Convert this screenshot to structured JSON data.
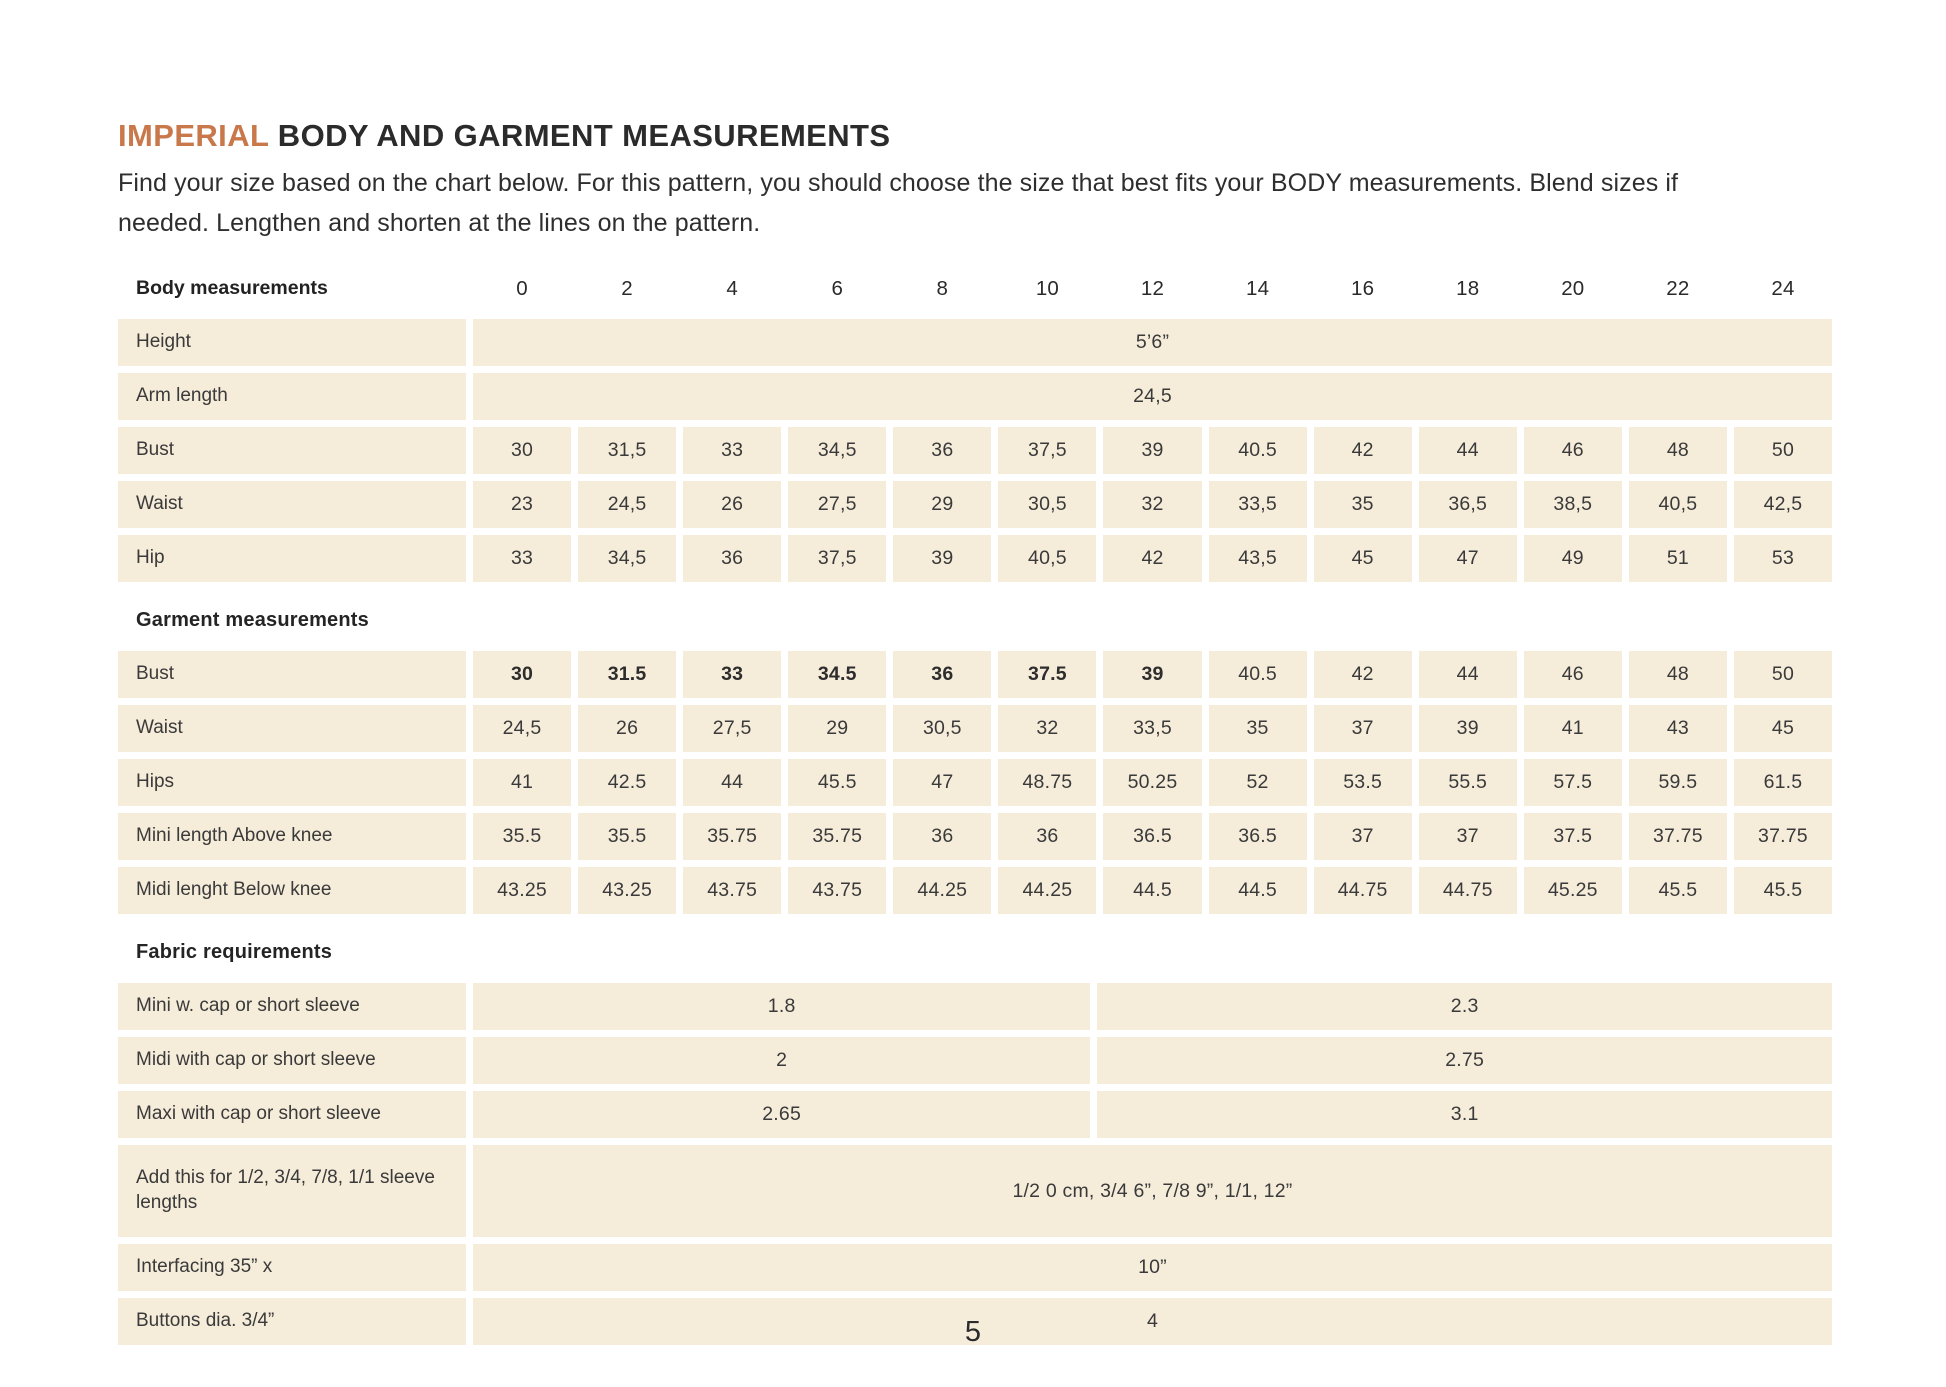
{
  "page": {
    "title_accent": "IMPERIAL",
    "title_rest": "BODY AND GARMENT MEASUREMENTS",
    "subtitle": "Find your size based on the chart below. For this pattern, you should choose the size that best fits your BODY measurements. Blend sizes if needed. Lengthen and shorten at the lines on the pattern.",
    "page_number": "5"
  },
  "colors": {
    "accent_orange": "#C9784B",
    "cell_beige": "#F5ECDA",
    "text_dark": "#2E2E2E"
  },
  "table": {
    "header": {
      "label": "Body measurements",
      "sizes": [
        "0",
        "2",
        "4",
        "6",
        "8",
        "10",
        "12",
        "14",
        "16",
        "18",
        "20",
        "22",
        "24"
      ]
    },
    "sections": [
      {
        "heading": null,
        "rows": [
          {
            "label": "Height",
            "type": "merged",
            "value": "5’6”"
          },
          {
            "label": "Arm length",
            "type": "merged",
            "value": "24,5"
          },
          {
            "label": "Bust",
            "type": "cells",
            "values": [
              "30",
              "31,5",
              "33",
              "34,5",
              "36",
              "37,5",
              "39",
              "40.5",
              "42",
              "44",
              "46",
              "48",
              "50"
            ]
          },
          {
            "label": "Waist",
            "type": "cells",
            "values": [
              "23",
              "24,5",
              "26",
              "27,5",
              "29",
              "30,5",
              "32",
              "33,5",
              "35",
              "36,5",
              "38,5",
              "40,5",
              "42,5"
            ]
          },
          {
            "label": "Hip",
            "type": "cells",
            "values": [
              "33",
              "34,5",
              "36",
              "37,5",
              "39",
              "40,5",
              "42",
              "43,5",
              "45",
              "47",
              "49",
              "51",
              "53"
            ]
          }
        ]
      },
      {
        "heading": "Garment measurements",
        "rows": [
          {
            "label": "Bust",
            "type": "cells",
            "bold_until": 7,
            "values": [
              "30",
              "31.5",
              "33",
              "34.5",
              "36",
              "37.5",
              "39",
              "40.5",
              "42",
              "44",
              "46",
              "48",
              "50"
            ]
          },
          {
            "label": "Waist",
            "type": "cells",
            "values": [
              "24,5",
              "26",
              "27,5",
              "29",
              "30,5",
              "32",
              "33,5",
              "35",
              "37",
              "39",
              "41",
              "43",
              "45"
            ]
          },
          {
            "label": "Hips",
            "type": "cells",
            "values": [
              "41",
              "42.5",
              "44",
              "45.5",
              "47",
              "48.75",
              "50.25",
              "52",
              "53.5",
              "55.5",
              "57.5",
              "59.5",
              "61.5"
            ]
          },
          {
            "label": "Mini length Above knee",
            "type": "cells",
            "values": [
              "35.5",
              "35.5",
              "35.75",
              "35.75",
              "36",
              "36",
              "36.5",
              "36.5",
              "37",
              "37",
              "37.5",
              "37.75",
              "37.75"
            ]
          },
          {
            "label": "Midi lenght Below knee",
            "type": "cells",
            "values": [
              "43.25",
              "43.25",
              "43.75",
              "43.75",
              "44.25",
              "44.25",
              "44.5",
              "44.5",
              "44.75",
              "44.75",
              "45.25",
              "45.5",
              "45.5"
            ]
          }
        ]
      },
      {
        "heading": "Fabric requirements",
        "rows": [
          {
            "label": "Mini w. cap or short sleeve",
            "type": "split",
            "values": [
              "1.8",
              "2.3"
            ]
          },
          {
            "label": "Midi with cap or short sleeve",
            "type": "split",
            "values": [
              "2",
              "2.75"
            ]
          },
          {
            "label": "Maxi with cap or short sleeve",
            "type": "split",
            "values": [
              "2.65",
              "3.1"
            ]
          },
          {
            "label": "Add this for 1/2, 3/4, 7/8, 1/1 sleeve lengths",
            "type": "merged",
            "tall": true,
            "value": "1/2 0 cm, 3/4 6”, 7/8 9”, 1/1, 12”"
          },
          {
            "label": "Interfacing 35” x",
            "type": "merged",
            "value": "10”"
          },
          {
            "label": "Buttons dia. 3/4”",
            "type": "merged",
            "value": "4"
          }
        ]
      }
    ]
  }
}
